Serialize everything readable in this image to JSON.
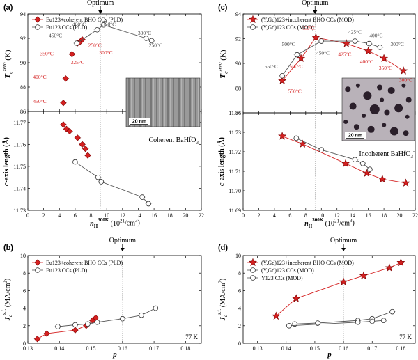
{
  "panel_labels": [
    "(a)",
    "(b)",
    "(c)",
    "(d)"
  ],
  "optimum_label": "Optimum",
  "inset_scalebar": "20 nm",
  "colors": {
    "red": "#d42020",
    "gray": "#555555",
    "grid": "#cccccc"
  },
  "chart_data": [
    {
      "id": "a-top",
      "type": "scatter",
      "ylabel": "T_c^zero (K)",
      "ylim": [
        86,
        94
      ],
      "yticks": [
        86,
        88,
        90,
        92,
        94
      ],
      "xlim": [
        0,
        22
      ],
      "optimum_x": 9.2,
      "legend": [
        "Eu123+coherent BHO CCs (PLD)",
        "Eu123 CCs (PLD)"
      ],
      "series": [
        {
          "name": "Eu123+coherent BHO CCs (PLD)",
          "marker": "diamond",
          "color": "#d42020",
          "line": false,
          "x": [
            4.5,
            4.8,
            5.6,
            6.3,
            6.6,
            6.9
          ],
          "y": [
            86.7,
            88.7,
            90.7,
            91.6,
            91.7,
            91.9
          ]
        },
        {
          "name": "Eu123 CCs (PLD)",
          "marker": "circle",
          "color": "#555555",
          "line": true,
          "x": [
            6.2,
            8.8,
            9.6,
            15.0,
            15.7
          ],
          "y": [
            91.6,
            92.7,
            93.1,
            92.0,
            91.8
          ]
        }
      ],
      "annotations": [
        {
          "text": "400°C",
          "x": 6.5,
          "y": 93.0,
          "color": "gray"
        },
        {
          "text": "350°C",
          "x": 10.3,
          "y": 93.0,
          "color": "gray"
        },
        {
          "text": "450°C",
          "x": 3.5,
          "y": 92.1,
          "color": "gray"
        },
        {
          "text": "300°C",
          "x": 14.8,
          "y": 92.3,
          "color": "gray"
        },
        {
          "text": "250°C",
          "x": 16.2,
          "y": 91.3,
          "color": "gray"
        },
        {
          "text": "250°C",
          "x": 8.5,
          "y": 91.3,
          "color": "red"
        },
        {
          "text": "350°C",
          "x": 2.4,
          "y": 90.6,
          "color": "red"
        },
        {
          "text": "300°C",
          "x": 9.9,
          "y": 90.7,
          "color": "red"
        },
        {
          "text": "325°C",
          "x": 6.3,
          "y": 89.9,
          "color": "red"
        },
        {
          "text": "400°C",
          "x": 1.5,
          "y": 88.7,
          "color": "red"
        },
        {
          "text": "450°C",
          "x": 1.5,
          "y": 86.7,
          "color": "red"
        }
      ]
    },
    {
      "id": "a-bottom",
      "type": "scatter",
      "ylabel": "c-axis length (Å)",
      "ylim": [
        11.73,
        11.775
      ],
      "yticks": [
        11.73,
        11.74,
        11.75,
        11.76,
        11.77
      ],
      "xlabel": "n_H^300K (10^21/cm^3)",
      "xlim": [
        0,
        22
      ],
      "xticks": [
        0,
        2,
        4,
        6,
        8,
        10,
        12,
        14,
        16,
        18,
        20,
        22
      ],
      "optimum_x": 9.2,
      "inset_label": "Coherent BaHfO3",
      "series": [
        {
          "name": "Eu123+coherent BHO CCs (PLD)",
          "marker": "diamond",
          "color": "#d42020",
          "line": false,
          "x": [
            4.5,
            4.9,
            5.3,
            6.3,
            6.9,
            7.3,
            7.6
          ],
          "y": [
            11.769,
            11.767,
            11.766,
            11.763,
            11.76,
            11.758,
            11.755
          ]
        },
        {
          "name": "Eu123 CCs (PLD)",
          "marker": "circle",
          "color": "#555555",
          "line": true,
          "x": [
            6.0,
            8.9,
            9.3,
            14.5,
            15.3
          ],
          "y": [
            11.752,
            11.745,
            11.743,
            11.736,
            11.733
          ]
        }
      ]
    },
    {
      "id": "c-top",
      "type": "scatter",
      "ylabel": "T_c^zero (K)",
      "ylim": [
        86,
        94
      ],
      "yticks": [
        86,
        88,
        90,
        92,
        94
      ],
      "xlim": [
        0,
        22
      ],
      "optimum_x": 9.2,
      "legend": [
        "(Y,Gd)123+incoherent BHO CCs (MOD)",
        "(Y,Gd)123 CCs (MOD)"
      ],
      "series": [
        {
          "name": "(Y,Gd)123+incoherent BHO CCs (MOD)",
          "marker": "star",
          "color": "#d42020",
          "line": true,
          "x": [
            5.0,
            7.4,
            9.3,
            13.2,
            16.0,
            18.0,
            20.5
          ],
          "y": [
            88.6,
            90.4,
            92.1,
            91.6,
            91.0,
            90.4,
            89.4
          ]
        },
        {
          "name": "(Y,Gd)123 CCs (MOD)",
          "marker": "circle",
          "color": "#555555",
          "line": true,
          "x": [
            5.0,
            6.9,
            10.0,
            14.3,
            16.1,
            17.5
          ],
          "y": [
            89.0,
            90.7,
            91.8,
            91.8,
            91.6,
            91.3
          ]
        }
      ],
      "annotations": [
        {
          "text": "450°C",
          "x": 8.3,
          "y": 92.7,
          "color": "red"
        },
        {
          "text": "500°C",
          "x": 5.8,
          "y": 91.4,
          "color": "gray"
        },
        {
          "text": "425°C",
          "x": 14.3,
          "y": 92.4,
          "color": "gray"
        },
        {
          "text": "400°C",
          "x": 17.0,
          "y": 92.1,
          "color": "gray"
        },
        {
          "text": "300°C",
          "x": 19.7,
          "y": 91.4,
          "color": "gray"
        },
        {
          "text": "550°C",
          "x": 3.6,
          "y": 89.6,
          "color": "gray"
        },
        {
          "text": "500°C",
          "x": 6.8,
          "y": 89.6,
          "color": "red"
        },
        {
          "text": "450°C",
          "x": 10.2,
          "y": 90.7,
          "color": "gray"
        },
        {
          "text": "425°C",
          "x": 13.0,
          "y": 90.6,
          "color": "red"
        },
        {
          "text": "400°C",
          "x": 15.8,
          "y": 90.0,
          "color": "red"
        },
        {
          "text": "350°C",
          "x": 18.2,
          "y": 89.5,
          "color": "red"
        },
        {
          "text": "300°C",
          "x": 20.8,
          "y": 88.5,
          "color": "red"
        },
        {
          "text": "550°C",
          "x": 6.6,
          "y": 87.6,
          "color": "red"
        }
      ]
    },
    {
      "id": "c-bottom",
      "type": "scatter",
      "ylabel": "c-axis length (Å)",
      "ylim": [
        11.69,
        11.74
      ],
      "yticks": [
        11.69,
        11.7,
        11.71,
        11.72,
        11.73,
        11.74
      ],
      "xlabel": "n_H^300K (10^21/cm^3)",
      "xlim": [
        0,
        22
      ],
      "xticks": [
        0,
        2,
        4,
        6,
        8,
        10,
        12,
        14,
        16,
        18,
        20,
        22
      ],
      "optimum_x": 9.2,
      "inset_label": "Incoherent BaHfO3",
      "series": [
        {
          "name": "(Y,Gd)123+incoherent BHO CCs (MOD)",
          "marker": "star",
          "color": "#d42020",
          "line": true,
          "x": [
            5.0,
            7.6,
            13.1,
            15.8,
            17.8,
            20.8
          ],
          "y": [
            11.728,
            11.724,
            11.714,
            11.709,
            11.706,
            11.704
          ]
        },
        {
          "name": "(Y,Gd)123 CCs (MOD)",
          "marker": "circle",
          "color": "#555555",
          "line": true,
          "x": [
            6.8,
            10.0,
            14.3,
            15.3,
            16.2
          ],
          "y": [
            11.727,
            11.721,
            11.716,
            11.714,
            11.711
          ]
        }
      ]
    },
    {
      "id": "b",
      "type": "scatter",
      "ylabel": "J_c^s.f. (MA/cm^2)",
      "ylim": [
        0,
        10
      ],
      "yticks": [
        0,
        2,
        4,
        6,
        8,
        10
      ],
      "xlabel": "p",
      "xlim": [
        0.13,
        0.185
      ],
      "xticks": [
        0.13,
        0.14,
        0.15,
        0.16,
        0.17,
        0.18
      ],
      "optimum_x": 0.16,
      "temperature": "77 K",
      "legend": [
        "Eu123+coherent BHO CCs (PLD)",
        "Eu123 CCs (PLD)"
      ],
      "series": [
        {
          "name": "Eu123+coherent BHO CCs (PLD)",
          "marker": "diamond",
          "color": "#d42020",
          "line": true,
          "x": [
            0.133,
            0.136,
            0.145,
            0.1485,
            0.1505,
            0.1515
          ],
          "y": [
            0.5,
            1.1,
            1.5,
            2.0,
            2.6,
            2.9
          ]
        },
        {
          "name": "Eu123 CCs (PLD)",
          "marker": "circle",
          "color": "#555555",
          "line": true,
          "x": [
            0.1395,
            0.145,
            0.149,
            0.152,
            0.16,
            0.166,
            0.1705
          ],
          "y": [
            1.9,
            2.1,
            2.2,
            2.4,
            2.8,
            3.2,
            4.0
          ]
        }
      ]
    },
    {
      "id": "d",
      "type": "scatter",
      "ylabel": "J_c^s.f. (MA/cm^2)",
      "ylim": [
        0,
        10
      ],
      "yticks": [
        0,
        2,
        4,
        6,
        8,
        10
      ],
      "xlabel": "p",
      "xlim": [
        0.125,
        0.185
      ],
      "xticks": [
        0.13,
        0.14,
        0.15,
        0.16,
        0.17,
        0.18
      ],
      "optimum_x": 0.16,
      "temperature": "77 K",
      "legend": [
        "(Y,Gd)123+incoherent BHO CCs (MOD)",
        "(Y,Gd)123 CCs (MOD)",
        "Y123 CCs (MOD)"
      ],
      "series": [
        {
          "name": "(Y,Gd)123+incoherent BHO CCs (MOD)",
          "marker": "star",
          "color": "#d42020",
          "line": true,
          "x": [
            0.1365,
            0.1435,
            0.16,
            0.167,
            0.176,
            0.18
          ],
          "y": [
            3.1,
            5.1,
            7.0,
            7.7,
            8.6,
            9.2
          ]
        },
        {
          "name": "(Y,Gd)123 CCs (MOD)",
          "marker": "circle",
          "color": "#555555",
          "line": true,
          "x": [
            0.143,
            0.151,
            0.165,
            0.17,
            0.177
          ],
          "y": [
            2.2,
            2.3,
            2.6,
            2.8,
            3.6
          ]
        },
        {
          "name": "Y123 CCs (MOD)",
          "marker": "circle",
          "color": "#555555",
          "line": true,
          "x": [
            0.141,
            0.165,
            0.17,
            0.174
          ],
          "y": [
            2.0,
            2.4,
            2.5,
            2.6
          ]
        }
      ]
    }
  ]
}
